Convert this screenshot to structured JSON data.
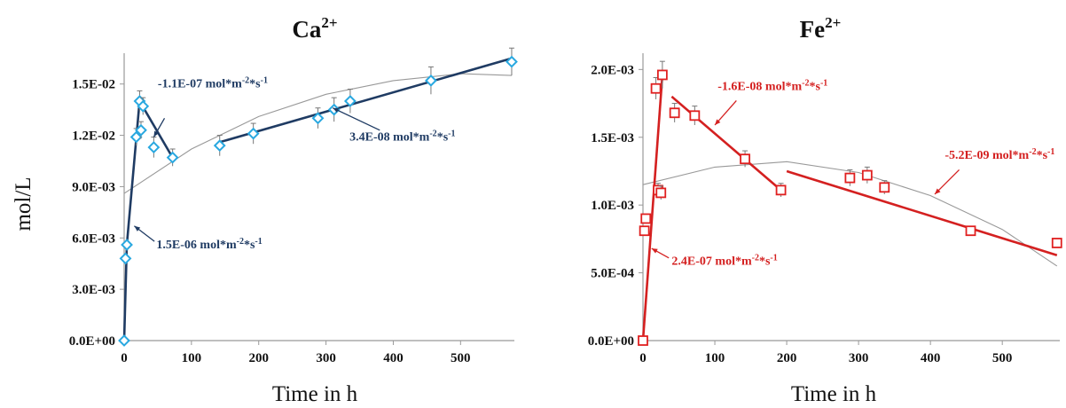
{
  "chart_data": [
    {
      "type": "scatter",
      "title": "Ca",
      "title_sup": "2+",
      "xlabel": "Time in h",
      "ylabel": "mol/L",
      "xlim": [
        0,
        580
      ],
      "ylim": [
        0,
        0.0168
      ],
      "x_ticks": [
        0,
        100,
        200,
        300,
        400,
        500
      ],
      "x_tick_labels": [
        "0",
        "100",
        "200",
        "300",
        "400",
        "500"
      ],
      "y_ticks": [
        0,
        0.003,
        0.006,
        0.009,
        0.012,
        0.015
      ],
      "y_tick_labels": [
        "0.0E+00",
        "3.0E-03",
        "6.0E-03",
        "9.0E-03",
        "1.2E-02",
        "1.5E-02"
      ],
      "grid": false,
      "marker": "diamond",
      "color": "#29a8e0",
      "line_color": "#1f3b63",
      "points": [
        {
          "x": 0,
          "y": 0.0,
          "err": 0
        },
        {
          "x": 2,
          "y": 0.0048,
          "err": 0
        },
        {
          "x": 4,
          "y": 0.0056,
          "err": 0
        },
        {
          "x": 18,
          "y": 0.0119,
          "err": 0.0005
        },
        {
          "x": 23,
          "y": 0.014,
          "err": 0.0006
        },
        {
          "x": 25,
          "y": 0.0123,
          "err": 0.0005
        },
        {
          "x": 28,
          "y": 0.0137,
          "err": 0.0005
        },
        {
          "x": 44,
          "y": 0.0113,
          "err": 0.0006
        },
        {
          "x": 72,
          "y": 0.0107,
          "err": 0.0005
        },
        {
          "x": 142,
          "y": 0.0114,
          "err": 0.0006
        },
        {
          "x": 192,
          "y": 0.0121,
          "err": 0.0006
        },
        {
          "x": 288,
          "y": 0.013,
          "err": 0.0006
        },
        {
          "x": 312,
          "y": 0.0135,
          "err": 0.0007
        },
        {
          "x": 336,
          "y": 0.014,
          "err": 0.0007
        },
        {
          "x": 456,
          "y": 0.0152,
          "err": 0.0008
        },
        {
          "x": 576,
          "y": 0.0163,
          "err": 0.0008
        }
      ],
      "trend_lines": [
        {
          "x": [
            0,
            4,
            23
          ],
          "y": [
            0.0,
            0.0056,
            0.014
          ]
        },
        {
          "x": [
            23,
            72
          ],
          "y": [
            0.014,
            0.0107
          ]
        },
        {
          "x": [
            142,
            576
          ],
          "y": [
            0.0116,
            0.0165
          ]
        }
      ],
      "fit_curve": {
        "x": [
          0,
          100,
          200,
          300,
          400,
          500,
          576
        ],
        "y": [
          0.0086,
          0.0112,
          0.0131,
          0.0144,
          0.0152,
          0.0156,
          0.0155
        ]
      },
      "annotations": [
        {
          "text": "-1.1E-07 mol*m",
          "sup1": "-2",
          "mid": "*s",
          "sup2": "-1",
          "x": 50,
          "y": 0.0148,
          "arrow_from": [
            60,
            0.013
          ],
          "arrow_to": [
            44,
            0.0119
          ]
        },
        {
          "text": "3.4E-08 mol*m",
          "sup1": "-2",
          "mid": "*s",
          "sup2": "-1",
          "x": 335,
          "y": 0.0117,
          "arrow_from": [
            380,
            0.0123
          ],
          "arrow_to": [
            310,
            0.0136
          ]
        },
        {
          "text": "1.5E-06 mol*m",
          "sup1": "-2",
          "mid": "*s",
          "sup2": "-1",
          "x": 48,
          "y": 0.0054,
          "arrow_from": [
            45,
            0.0058
          ],
          "arrow_to": [
            15,
            0.0067
          ]
        }
      ]
    },
    {
      "type": "scatter",
      "title": "Fe",
      "title_sup": "2+",
      "xlabel": "Time in h",
      "ylabel": "",
      "xlim": [
        0,
        580
      ],
      "ylim": [
        0,
        0.00212
      ],
      "x_ticks": [
        0,
        100,
        200,
        300,
        400,
        500
      ],
      "x_tick_labels": [
        "0",
        "100",
        "200",
        "300",
        "400",
        "500"
      ],
      "y_ticks": [
        0,
        0.0005,
        0.001,
        0.0015,
        0.002
      ],
      "y_tick_labels": [
        "0.0E+00",
        "5.0E-04",
        "1.0E-03",
        "1.5E-03",
        "2.0E-03"
      ],
      "grid": false,
      "marker": "square",
      "color": "#e02020",
      "line_color": "#d42020",
      "points": [
        {
          "x": 0,
          "y": 0.0,
          "err": 0
        },
        {
          "x": 2,
          "y": 0.00081,
          "err": 0
        },
        {
          "x": 4,
          "y": 0.0009,
          "err": 0
        },
        {
          "x": 18,
          "y": 0.00186,
          "err": 8e-05
        },
        {
          "x": 21,
          "y": 0.00111,
          "err": 5e-05
        },
        {
          "x": 25,
          "y": 0.00109,
          "err": 5e-05
        },
        {
          "x": 27,
          "y": 0.00196,
          "err": 0.0001
        },
        {
          "x": 44,
          "y": 0.00168,
          "err": 7e-05
        },
        {
          "x": 72,
          "y": 0.00166,
          "err": 7e-05
        },
        {
          "x": 142,
          "y": 0.00134,
          "err": 6e-05
        },
        {
          "x": 192,
          "y": 0.00111,
          "err": 5e-05
        },
        {
          "x": 288,
          "y": 0.0012,
          "err": 6e-05
        },
        {
          "x": 312,
          "y": 0.00122,
          "err": 6e-05
        },
        {
          "x": 336,
          "y": 0.00113,
          "err": 5e-05
        },
        {
          "x": 456,
          "y": 0.00081,
          "err": 0
        },
        {
          "x": 576,
          "y": 0.00072,
          "err": 0
        }
      ],
      "trend_lines": [
        {
          "x": [
            0,
            27
          ],
          "y": [
            0.0,
            0.00196
          ]
        },
        {
          "x": [
            40,
            192
          ],
          "y": [
            0.0018,
            0.00111
          ]
        },
        {
          "x": [
            200,
            576
          ],
          "y": [
            0.00125,
            0.00063
          ]
        }
      ],
      "fit_curve": {
        "x": [
          0,
          100,
          200,
          300,
          400,
          500,
          576
        ],
        "y": [
          0.00115,
          0.00128,
          0.00132,
          0.00124,
          0.00107,
          0.00082,
          0.00055
        ]
      },
      "annotations": [
        {
          "text": "-1.6E-08 mol*m",
          "sup1": "-2",
          "mid": "*s",
          "sup2": "-1",
          "x": 104,
          "y": 0.00185,
          "arrow_from": [
            130,
            0.00177
          ],
          "arrow_to": [
            100,
            0.00159
          ]
        },
        {
          "text": "-5.2E-09 mol*m",
          "sup1": "-2",
          "mid": "*s",
          "sup2": "-1",
          "x": 420,
          "y": 0.00134,
          "arrow_from": [
            440,
            0.00126
          ],
          "arrow_to": [
            406,
            0.00108
          ]
        },
        {
          "text": "2.4E-07 mol*m",
          "sup1": "-2",
          "mid": "*s",
          "sup2": "-1",
          "x": 40,
          "y": 0.00056,
          "arrow_from": [
            36,
            0.00061
          ],
          "arrow_to": [
            12,
            0.00068
          ]
        }
      ]
    }
  ]
}
